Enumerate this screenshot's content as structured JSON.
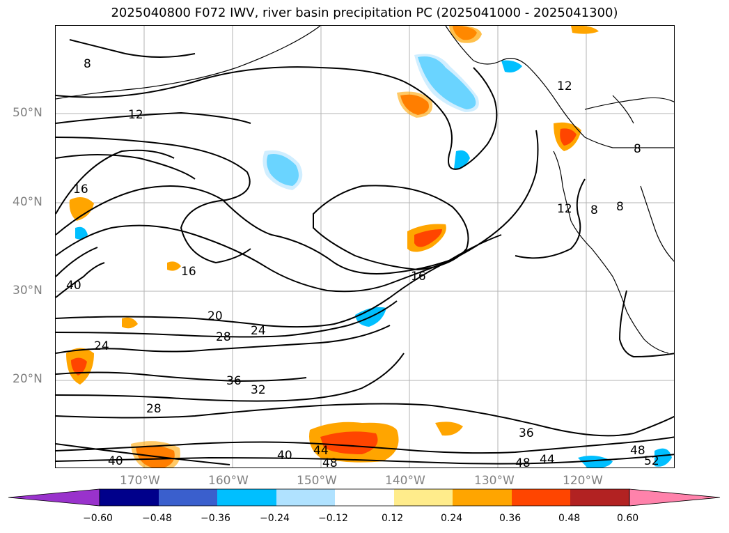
{
  "title": "2025040800 F072 IWV, river basin precipitation PC (2025041000 - 2025041300)",
  "lat_labels": [
    "50°N",
    "40°N",
    "30°N",
    "20°N"
  ],
  "lon_labels": [
    "170°W",
    "160°W",
    "150°W",
    "140°W",
    "130°W",
    "120°W"
  ],
  "colorbar": {
    "ticks": [
      "−0.60",
      "−0.48",
      "−0.36",
      "−0.24",
      "−0.12",
      "0.12",
      "0.24",
      "0.36",
      "0.48",
      "0.60"
    ],
    "colors": [
      "#9932CC",
      "#00008B",
      "#3a5fcd",
      "#00bfff",
      "#b0e2ff",
      "#ffffff",
      "#ffec8b",
      "#ffa500",
      "#ff4500",
      "#b22222",
      "#ff82ab"
    ]
  },
  "contour_labels": [
    "8",
    "12",
    "16",
    "20",
    "24",
    "28",
    "32",
    "36",
    "40",
    "44",
    "48",
    "52"
  ],
  "colors": {
    "contour": "#000000",
    "coast": "#000000",
    "grid": "#b3b3b3",
    "tick_label": "#808080"
  }
}
